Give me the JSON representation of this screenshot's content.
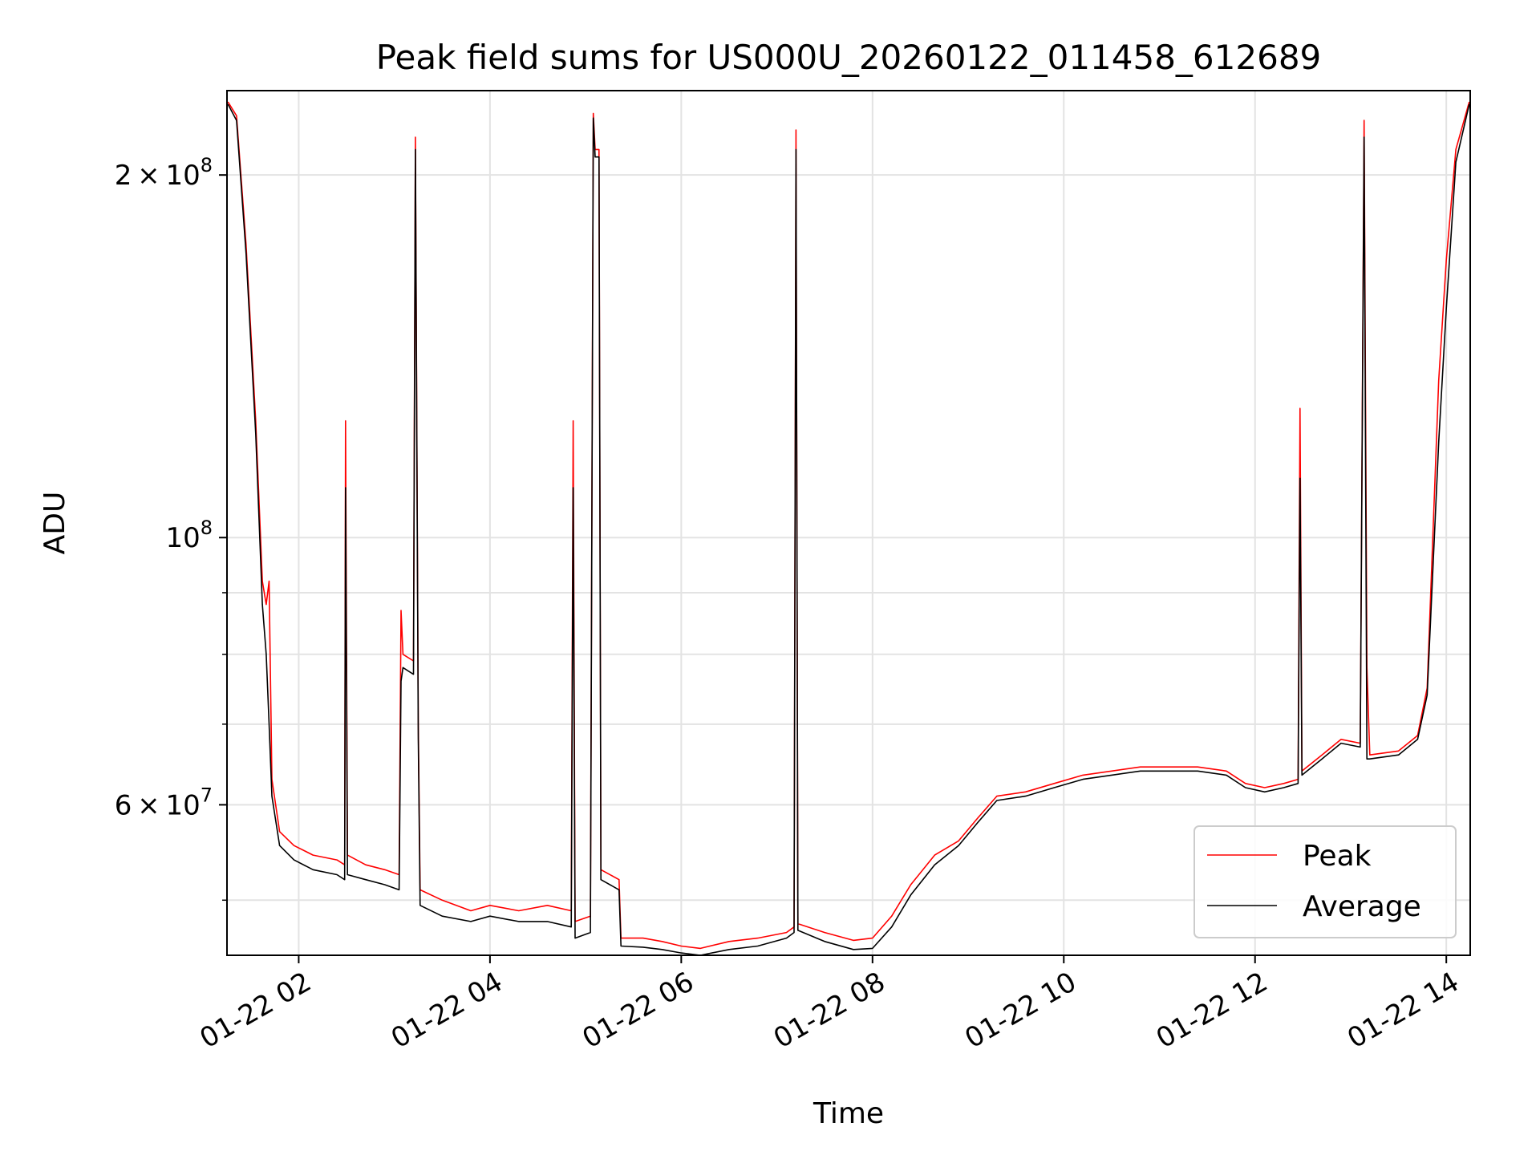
{
  "chart_data": {
    "type": "line",
    "title": "Peak field sums for US000U_20260122_011458_612689",
    "xlabel": "Time",
    "ylabel": "ADU",
    "y_scale": "log",
    "grid": true,
    "legend_position": "lower-right",
    "x_range_hours": [
      1.25,
      14.25
    ],
    "ylim": [
      45000000,
      235000000
    ],
    "x_ticks": [
      {
        "h": 2,
        "label": "01-22 02"
      },
      {
        "h": 4,
        "label": "01-22 04"
      },
      {
        "h": 6,
        "label": "01-22 06"
      },
      {
        "h": 8,
        "label": "01-22 08"
      },
      {
        "h": 10,
        "label": "01-22 10"
      },
      {
        "h": 12,
        "label": "01-22 12"
      },
      {
        "h": 14,
        "label": "01-22 14"
      }
    ],
    "y_major_ticks": [
      {
        "v": 60000000,
        "base": "6",
        "sup": "7"
      },
      {
        "v": 100000000,
        "base": "10",
        "sup": "8"
      },
      {
        "v": 200000000,
        "base": "2",
        "sup": "8"
      }
    ],
    "y_minor_ticks": [
      50000000,
      70000000,
      80000000,
      90000000
    ],
    "series": [
      {
        "name": "Peak",
        "color": "#ff0000",
        "points": [
          [
            1.26,
            230000000
          ],
          [
            1.35,
            224000000
          ],
          [
            1.45,
            175000000
          ],
          [
            1.55,
            125000000
          ],
          [
            1.62,
            92000000
          ],
          [
            1.66,
            88000000
          ],
          [
            1.69,
            92000000
          ],
          [
            1.72,
            63000000
          ],
          [
            1.8,
            57000000
          ],
          [
            1.95,
            55500000
          ],
          [
            2.15,
            54500000
          ],
          [
            2.4,
            54000000
          ],
          [
            2.48,
            53500000
          ],
          [
            2.49,
            125000000
          ],
          [
            2.51,
            54500000
          ],
          [
            2.7,
            53500000
          ],
          [
            2.9,
            53000000
          ],
          [
            3.05,
            52500000
          ],
          [
            3.07,
            87000000
          ],
          [
            3.09,
            80000000
          ],
          [
            3.2,
            79000000
          ],
          [
            3.22,
            215000000
          ],
          [
            3.25,
            70000000
          ],
          [
            3.27,
            51000000
          ],
          [
            3.5,
            50000000
          ],
          [
            3.8,
            49000000
          ],
          [
            4.0,
            49500000
          ],
          [
            4.3,
            49000000
          ],
          [
            4.6,
            49500000
          ],
          [
            4.85,
            49000000
          ],
          [
            4.87,
            125000000
          ],
          [
            4.89,
            48000000
          ],
          [
            5.05,
            48500000
          ],
          [
            5.08,
            225000000
          ],
          [
            5.1,
            210000000
          ],
          [
            5.14,
            210000000
          ],
          [
            5.16,
            53000000
          ],
          [
            5.35,
            52000000
          ],
          [
            5.37,
            46500000
          ],
          [
            5.6,
            46500000
          ],
          [
            5.8,
            46200000
          ],
          [
            6.0,
            45800000
          ],
          [
            6.2,
            45600000
          ],
          [
            6.5,
            46200000
          ],
          [
            6.8,
            46500000
          ],
          [
            7.1,
            47000000
          ],
          [
            7.18,
            47500000
          ],
          [
            7.2,
            218000000
          ],
          [
            7.22,
            47800000
          ],
          [
            7.5,
            47000000
          ],
          [
            7.8,
            46300000
          ],
          [
            8.0,
            46500000
          ],
          [
            8.2,
            48500000
          ],
          [
            8.4,
            51500000
          ],
          [
            8.65,
            54500000
          ],
          [
            8.9,
            56000000
          ],
          [
            9.1,
            58500000
          ],
          [
            9.3,
            61000000
          ],
          [
            9.6,
            61500000
          ],
          [
            9.9,
            62500000
          ],
          [
            10.2,
            63500000
          ],
          [
            10.5,
            64000000
          ],
          [
            10.8,
            64500000
          ],
          [
            11.1,
            64500000
          ],
          [
            11.4,
            64500000
          ],
          [
            11.7,
            64000000
          ],
          [
            11.9,
            62500000
          ],
          [
            12.1,
            62000000
          ],
          [
            12.3,
            62500000
          ],
          [
            12.45,
            63000000
          ],
          [
            12.47,
            128000000
          ],
          [
            12.49,
            64000000
          ],
          [
            12.7,
            66000000
          ],
          [
            12.9,
            68000000
          ],
          [
            13.1,
            67500000
          ],
          [
            13.14,
            222000000
          ],
          [
            13.17,
            78000000
          ],
          [
            13.2,
            66000000
          ],
          [
            13.5,
            66500000
          ],
          [
            13.7,
            68500000
          ],
          [
            13.8,
            75000000
          ],
          [
            13.92,
            135000000
          ],
          [
            14.0,
            170000000
          ],
          [
            14.1,
            210000000
          ],
          [
            14.24,
            230000000
          ]
        ]
      },
      {
        "name": "Average",
        "color": "#000000",
        "points": [
          [
            1.26,
            229000000
          ],
          [
            1.35,
            222000000
          ],
          [
            1.45,
            172000000
          ],
          [
            1.55,
            122000000
          ],
          [
            1.62,
            88000000
          ],
          [
            1.66,
            80000000
          ],
          [
            1.69,
            70000000
          ],
          [
            1.72,
            61000000
          ],
          [
            1.8,
            55500000
          ],
          [
            1.95,
            54000000
          ],
          [
            2.15,
            53000000
          ],
          [
            2.4,
            52500000
          ],
          [
            2.48,
            52000000
          ],
          [
            2.49,
            110000000
          ],
          [
            2.51,
            52500000
          ],
          [
            2.7,
            52000000
          ],
          [
            2.9,
            51500000
          ],
          [
            3.05,
            51000000
          ],
          [
            3.07,
            76000000
          ],
          [
            3.09,
            78000000
          ],
          [
            3.2,
            77000000
          ],
          [
            3.22,
            210000000
          ],
          [
            3.25,
            68000000
          ],
          [
            3.27,
            49500000
          ],
          [
            3.5,
            48500000
          ],
          [
            3.8,
            48000000
          ],
          [
            4.0,
            48500000
          ],
          [
            4.3,
            48000000
          ],
          [
            4.6,
            48000000
          ],
          [
            4.85,
            47500000
          ],
          [
            4.87,
            110000000
          ],
          [
            4.89,
            46500000
          ],
          [
            5.05,
            47000000
          ],
          [
            5.08,
            223000000
          ],
          [
            5.1,
            207000000
          ],
          [
            5.14,
            207000000
          ],
          [
            5.16,
            52000000
          ],
          [
            5.35,
            51000000
          ],
          [
            5.37,
            45800000
          ],
          [
            5.6,
            45700000
          ],
          [
            5.8,
            45500000
          ],
          [
            6.0,
            45200000
          ],
          [
            6.2,
            45000000
          ],
          [
            6.5,
            45500000
          ],
          [
            6.8,
            45800000
          ],
          [
            7.1,
            46500000
          ],
          [
            7.18,
            47000000
          ],
          [
            7.2,
            210000000
          ],
          [
            7.22,
            47200000
          ],
          [
            7.5,
            46200000
          ],
          [
            7.8,
            45500000
          ],
          [
            8.0,
            45600000
          ],
          [
            8.2,
            47500000
          ],
          [
            8.4,
            50500000
          ],
          [
            8.65,
            53500000
          ],
          [
            8.9,
            55500000
          ],
          [
            9.1,
            58000000
          ],
          [
            9.3,
            60500000
          ],
          [
            9.6,
            61000000
          ],
          [
            9.9,
            62000000
          ],
          [
            10.2,
            63000000
          ],
          [
            10.5,
            63500000
          ],
          [
            10.8,
            64000000
          ],
          [
            11.1,
            64000000
          ],
          [
            11.4,
            64000000
          ],
          [
            11.7,
            63500000
          ],
          [
            11.9,
            62000000
          ],
          [
            12.1,
            61500000
          ],
          [
            12.3,
            62000000
          ],
          [
            12.45,
            62500000
          ],
          [
            12.47,
            112000000
          ],
          [
            12.49,
            63500000
          ],
          [
            12.7,
            65500000
          ],
          [
            12.9,
            67500000
          ],
          [
            13.1,
            67000000
          ],
          [
            13.14,
            215000000
          ],
          [
            13.17,
            65500000
          ],
          [
            13.2,
            65500000
          ],
          [
            13.5,
            66000000
          ],
          [
            13.7,
            68000000
          ],
          [
            13.8,
            74000000
          ],
          [
            13.92,
            120000000
          ],
          [
            14.0,
            155000000
          ],
          [
            14.1,
            205000000
          ],
          [
            14.24,
            229000000
          ]
        ]
      }
    ]
  }
}
